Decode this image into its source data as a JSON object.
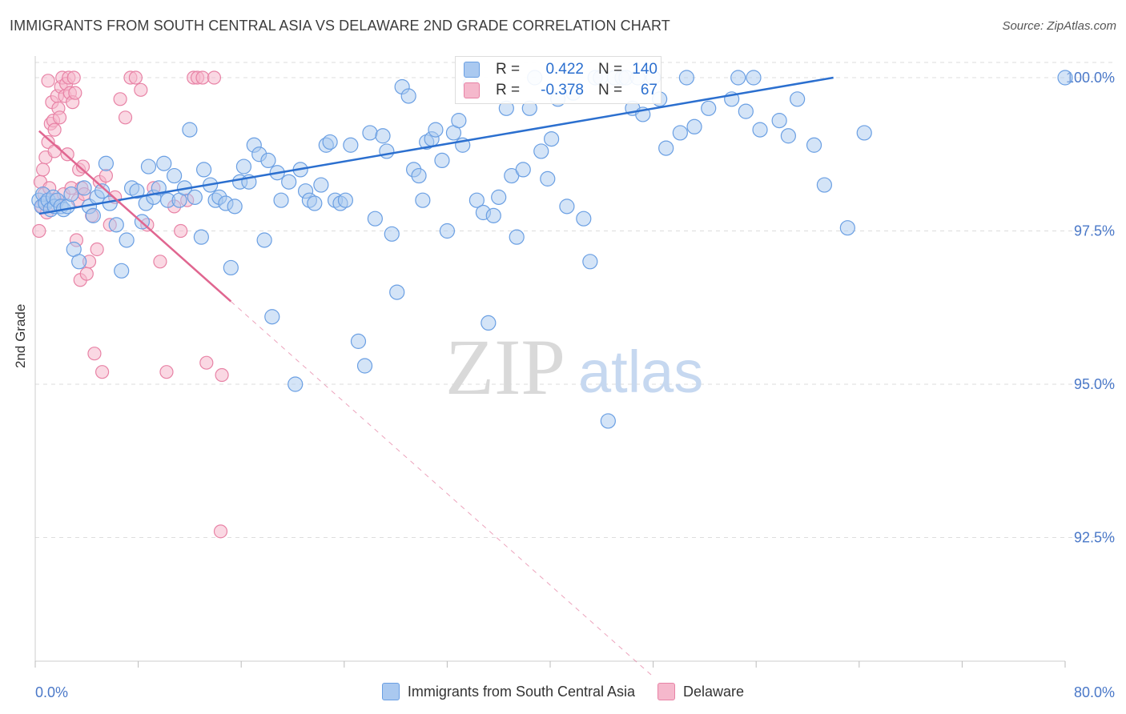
{
  "title": "IMMIGRANTS FROM SOUTH CENTRAL ASIA VS DELAWARE 2ND GRADE CORRELATION CHART",
  "source": "Source: ZipAtlas.com",
  "watermark": {
    "zip": "ZIP",
    "atlas": "atlas"
  },
  "colors": {
    "blue": "#6a9fe3",
    "blue_fill": "#aac9f0",
    "blue_line": "#2b6fcf",
    "pink": "#e883a6",
    "pink_fill": "#f5b8cc",
    "pink_line": "#e06690",
    "axis_text_blue": "#4a78c8",
    "grid": "#dddddd"
  },
  "legend": {
    "series1": "Immigrants from South Central Asia",
    "series2": "Delaware"
  },
  "stats": {
    "r_label": "R =",
    "n_label": "N =",
    "series1": {
      "r": "0.422",
      "n": "140"
    },
    "series2": {
      "r": "-0.378",
      "n": "67"
    }
  },
  "chart_data": {
    "type": "scatter",
    "title": "IMMIGRANTS FROM SOUTH CENTRAL ASIA VS DELAWARE 2ND GRADE CORRELATION CHART",
    "xlabel": "",
    "ylabel": "2nd Grade",
    "xlim": [
      0,
      80
    ],
    "ylim": [
      90.0,
      100.4
    ],
    "x_tick_labels": [
      "0.0%",
      "80.0%"
    ],
    "y_tick_labels": [
      "100.0%",
      "97.5%",
      "95.0%",
      "92.5%"
    ],
    "y_ticks": [
      100.0,
      97.5,
      95.0,
      92.5
    ],
    "grid": true,
    "legend_position": "bottom",
    "series": [
      {
        "name": "Immigrants from South Central Asia",
        "trend": {
          "x0": 0.3,
          "y0": 97.78,
          "x1": 62,
          "y1": 100.0
        },
        "points": [
          [
            0.3,
            98.0
          ],
          [
            0.5,
            97.9
          ],
          [
            0.6,
            98.1
          ],
          [
            0.8,
            97.95
          ],
          [
            1.0,
            98.0
          ],
          [
            1.2,
            97.85
          ],
          [
            1.4,
            98.05
          ],
          [
            1.5,
            97.9
          ],
          [
            1.7,
            98.0
          ],
          [
            2.0,
            97.9
          ],
          [
            2.2,
            97.85
          ],
          [
            2.5,
            97.9
          ],
          [
            2.8,
            98.1
          ],
          [
            3.0,
            97.2
          ],
          [
            3.4,
            97.0
          ],
          [
            3.8,
            98.2
          ],
          [
            4.2,
            97.9
          ],
          [
            4.5,
            97.75
          ],
          [
            4.8,
            98.05
          ],
          [
            5.2,
            98.15
          ],
          [
            5.5,
            98.6
          ],
          [
            5.8,
            97.95
          ],
          [
            6.3,
            97.6
          ],
          [
            6.7,
            96.85
          ],
          [
            7.1,
            97.35
          ],
          [
            7.5,
            98.2
          ],
          [
            7.9,
            98.15
          ],
          [
            8.3,
            97.65
          ],
          [
            8.6,
            97.95
          ],
          [
            8.8,
            98.55
          ],
          [
            9.2,
            98.05
          ],
          [
            9.6,
            98.2
          ],
          [
            10.0,
            98.6
          ],
          [
            10.3,
            98.0
          ],
          [
            10.8,
            98.4
          ],
          [
            11.2,
            98.0
          ],
          [
            11.6,
            98.2
          ],
          [
            12.0,
            99.15
          ],
          [
            12.4,
            98.05
          ],
          [
            12.9,
            97.4
          ],
          [
            13.1,
            98.5
          ],
          [
            13.6,
            98.25
          ],
          [
            14.0,
            98.0
          ],
          [
            14.3,
            98.05
          ],
          [
            14.8,
            97.95
          ],
          [
            15.2,
            96.9
          ],
          [
            15.5,
            97.9
          ],
          [
            15.9,
            98.3
          ],
          [
            16.2,
            98.55
          ],
          [
            16.6,
            98.3
          ],
          [
            17.0,
            98.9
          ],
          [
            17.4,
            98.75
          ],
          [
            17.8,
            97.35
          ],
          [
            18.1,
            98.65
          ],
          [
            18.4,
            96.1
          ],
          [
            18.8,
            98.45
          ],
          [
            19.1,
            98.0
          ],
          [
            19.7,
            98.3
          ],
          [
            20.2,
            95.0
          ],
          [
            20.6,
            98.5
          ],
          [
            21.0,
            98.15
          ],
          [
            21.3,
            98.0
          ],
          [
            21.7,
            97.95
          ],
          [
            22.2,
            98.25
          ],
          [
            22.6,
            98.9
          ],
          [
            22.9,
            98.95
          ],
          [
            23.3,
            98.0
          ],
          [
            23.7,
            97.95
          ],
          [
            24.1,
            98.0
          ],
          [
            24.5,
            98.9
          ],
          [
            25.1,
            95.7
          ],
          [
            25.6,
            95.3
          ],
          [
            26.0,
            99.1
          ],
          [
            26.4,
            97.7
          ],
          [
            27.0,
            99.05
          ],
          [
            27.3,
            98.8
          ],
          [
            27.7,
            97.45
          ],
          [
            28.1,
            96.5
          ],
          [
            28.5,
            99.85
          ],
          [
            29.0,
            99.7
          ],
          [
            29.4,
            98.5
          ],
          [
            29.8,
            98.4
          ],
          [
            30.1,
            98.0
          ],
          [
            30.4,
            98.95
          ],
          [
            30.8,
            99.0
          ],
          [
            31.1,
            99.15
          ],
          [
            31.6,
            98.65
          ],
          [
            32.0,
            97.5
          ],
          [
            32.5,
            99.1
          ],
          [
            32.9,
            99.3
          ],
          [
            33.2,
            98.9
          ],
          [
            33.8,
            99.9
          ],
          [
            34.3,
            98.0
          ],
          [
            34.8,
            97.8
          ],
          [
            35.2,
            96.0
          ],
          [
            35.6,
            97.75
          ],
          [
            36.0,
            98.05
          ],
          [
            36.6,
            99.5
          ],
          [
            37.0,
            98.4
          ],
          [
            37.4,
            97.4
          ],
          [
            37.9,
            98.5
          ],
          [
            38.4,
            99.5
          ],
          [
            38.8,
            100.0
          ],
          [
            39.3,
            98.8
          ],
          [
            39.8,
            98.35
          ],
          [
            40.1,
            99.0
          ],
          [
            40.6,
            99.65
          ],
          [
            41.3,
            97.9
          ],
          [
            41.8,
            99.75
          ],
          [
            42.6,
            97.7
          ],
          [
            43.1,
            97.0
          ],
          [
            43.5,
            100.0
          ],
          [
            43.9,
            100.0
          ],
          [
            44.5,
            94.4
          ],
          [
            45.0,
            100.0
          ],
          [
            45.6,
            100.0
          ],
          [
            45.9,
            100.0
          ],
          [
            46.4,
            99.5
          ],
          [
            46.8,
            100.0
          ],
          [
            47.2,
            99.4
          ],
          [
            48.0,
            100.0
          ],
          [
            48.5,
            99.65
          ],
          [
            49.0,
            98.85
          ],
          [
            50.1,
            99.1
          ],
          [
            50.6,
            100.0
          ],
          [
            51.2,
            99.2
          ],
          [
            52.3,
            99.5
          ],
          [
            54.1,
            99.65
          ],
          [
            54.6,
            100.0
          ],
          [
            55.2,
            99.45
          ],
          [
            55.8,
            100.0
          ],
          [
            56.3,
            99.15
          ],
          [
            57.8,
            99.3
          ],
          [
            58.5,
            99.05
          ],
          [
            59.2,
            99.65
          ],
          [
            60.5,
            98.9
          ],
          [
            61.3,
            98.25
          ],
          [
            63.1,
            97.55
          ],
          [
            64.4,
            99.1
          ],
          [
            80.0,
            100.0
          ]
        ]
      },
      {
        "name": "Delaware",
        "trend": {
          "x0": 0.3,
          "y0": 99.13,
          "x1": 15.2,
          "y1": 96.35
        },
        "points": [
          [
            0.3,
            97.5
          ],
          [
            0.4,
            98.3
          ],
          [
            0.5,
            97.9
          ],
          [
            0.6,
            98.5
          ],
          [
            0.7,
            98.1
          ],
          [
            0.8,
            98.7
          ],
          [
            0.9,
            97.8
          ],
          [
            1.0,
            98.95
          ],
          [
            1.1,
            98.2
          ],
          [
            1.2,
            99.25
          ],
          [
            1.3,
            99.6
          ],
          [
            1.4,
            99.3
          ],
          [
            1.5,
            99.15
          ],
          [
            1.6,
            98.0
          ],
          [
            1.7,
            99.7
          ],
          [
            1.8,
            99.5
          ],
          [
            1.9,
            99.35
          ],
          [
            2.0,
            99.85
          ],
          [
            2.1,
            100.0
          ],
          [
            2.2,
            98.1
          ],
          [
            2.3,
            99.7
          ],
          [
            2.4,
            99.9
          ],
          [
            2.5,
            98.75
          ],
          [
            2.6,
            100.0
          ],
          [
            2.7,
            99.75
          ],
          [
            2.8,
            98.2
          ],
          [
            2.9,
            99.6
          ],
          [
            3.0,
            100.0
          ],
          [
            3.1,
            99.75
          ],
          [
            3.2,
            97.35
          ],
          [
            3.3,
            98.0
          ],
          [
            3.4,
            98.5
          ],
          [
            3.5,
            96.7
          ],
          [
            3.6,
            98.2
          ],
          [
            3.7,
            98.55
          ],
          [
            3.8,
            98.1
          ],
          [
            4.0,
            96.8
          ],
          [
            4.2,
            97.0
          ],
          [
            4.4,
            97.75
          ],
          [
            4.6,
            95.5
          ],
          [
            4.8,
            97.2
          ],
          [
            5.0,
            98.3
          ],
          [
            5.2,
            95.2
          ],
          [
            5.5,
            98.4
          ],
          [
            5.8,
            97.6
          ],
          [
            6.2,
            98.05
          ],
          [
            6.6,
            99.65
          ],
          [
            7.0,
            99.35
          ],
          [
            7.4,
            100.0
          ],
          [
            7.8,
            100.0
          ],
          [
            8.2,
            99.8
          ],
          [
            8.7,
            97.6
          ],
          [
            9.2,
            98.2
          ],
          [
            9.7,
            97.0
          ],
          [
            10.2,
            95.2
          ],
          [
            10.8,
            97.9
          ],
          [
            11.3,
            97.5
          ],
          [
            11.8,
            98.0
          ],
          [
            12.3,
            100.0
          ],
          [
            12.6,
            100.0
          ],
          [
            13.0,
            100.0
          ],
          [
            13.3,
            95.35
          ],
          [
            13.9,
            100.0
          ],
          [
            14.5,
            95.15
          ],
          [
            1.0,
            99.95
          ],
          [
            1.5,
            98.8
          ],
          [
            14.4,
            92.6
          ]
        ]
      }
    ]
  }
}
